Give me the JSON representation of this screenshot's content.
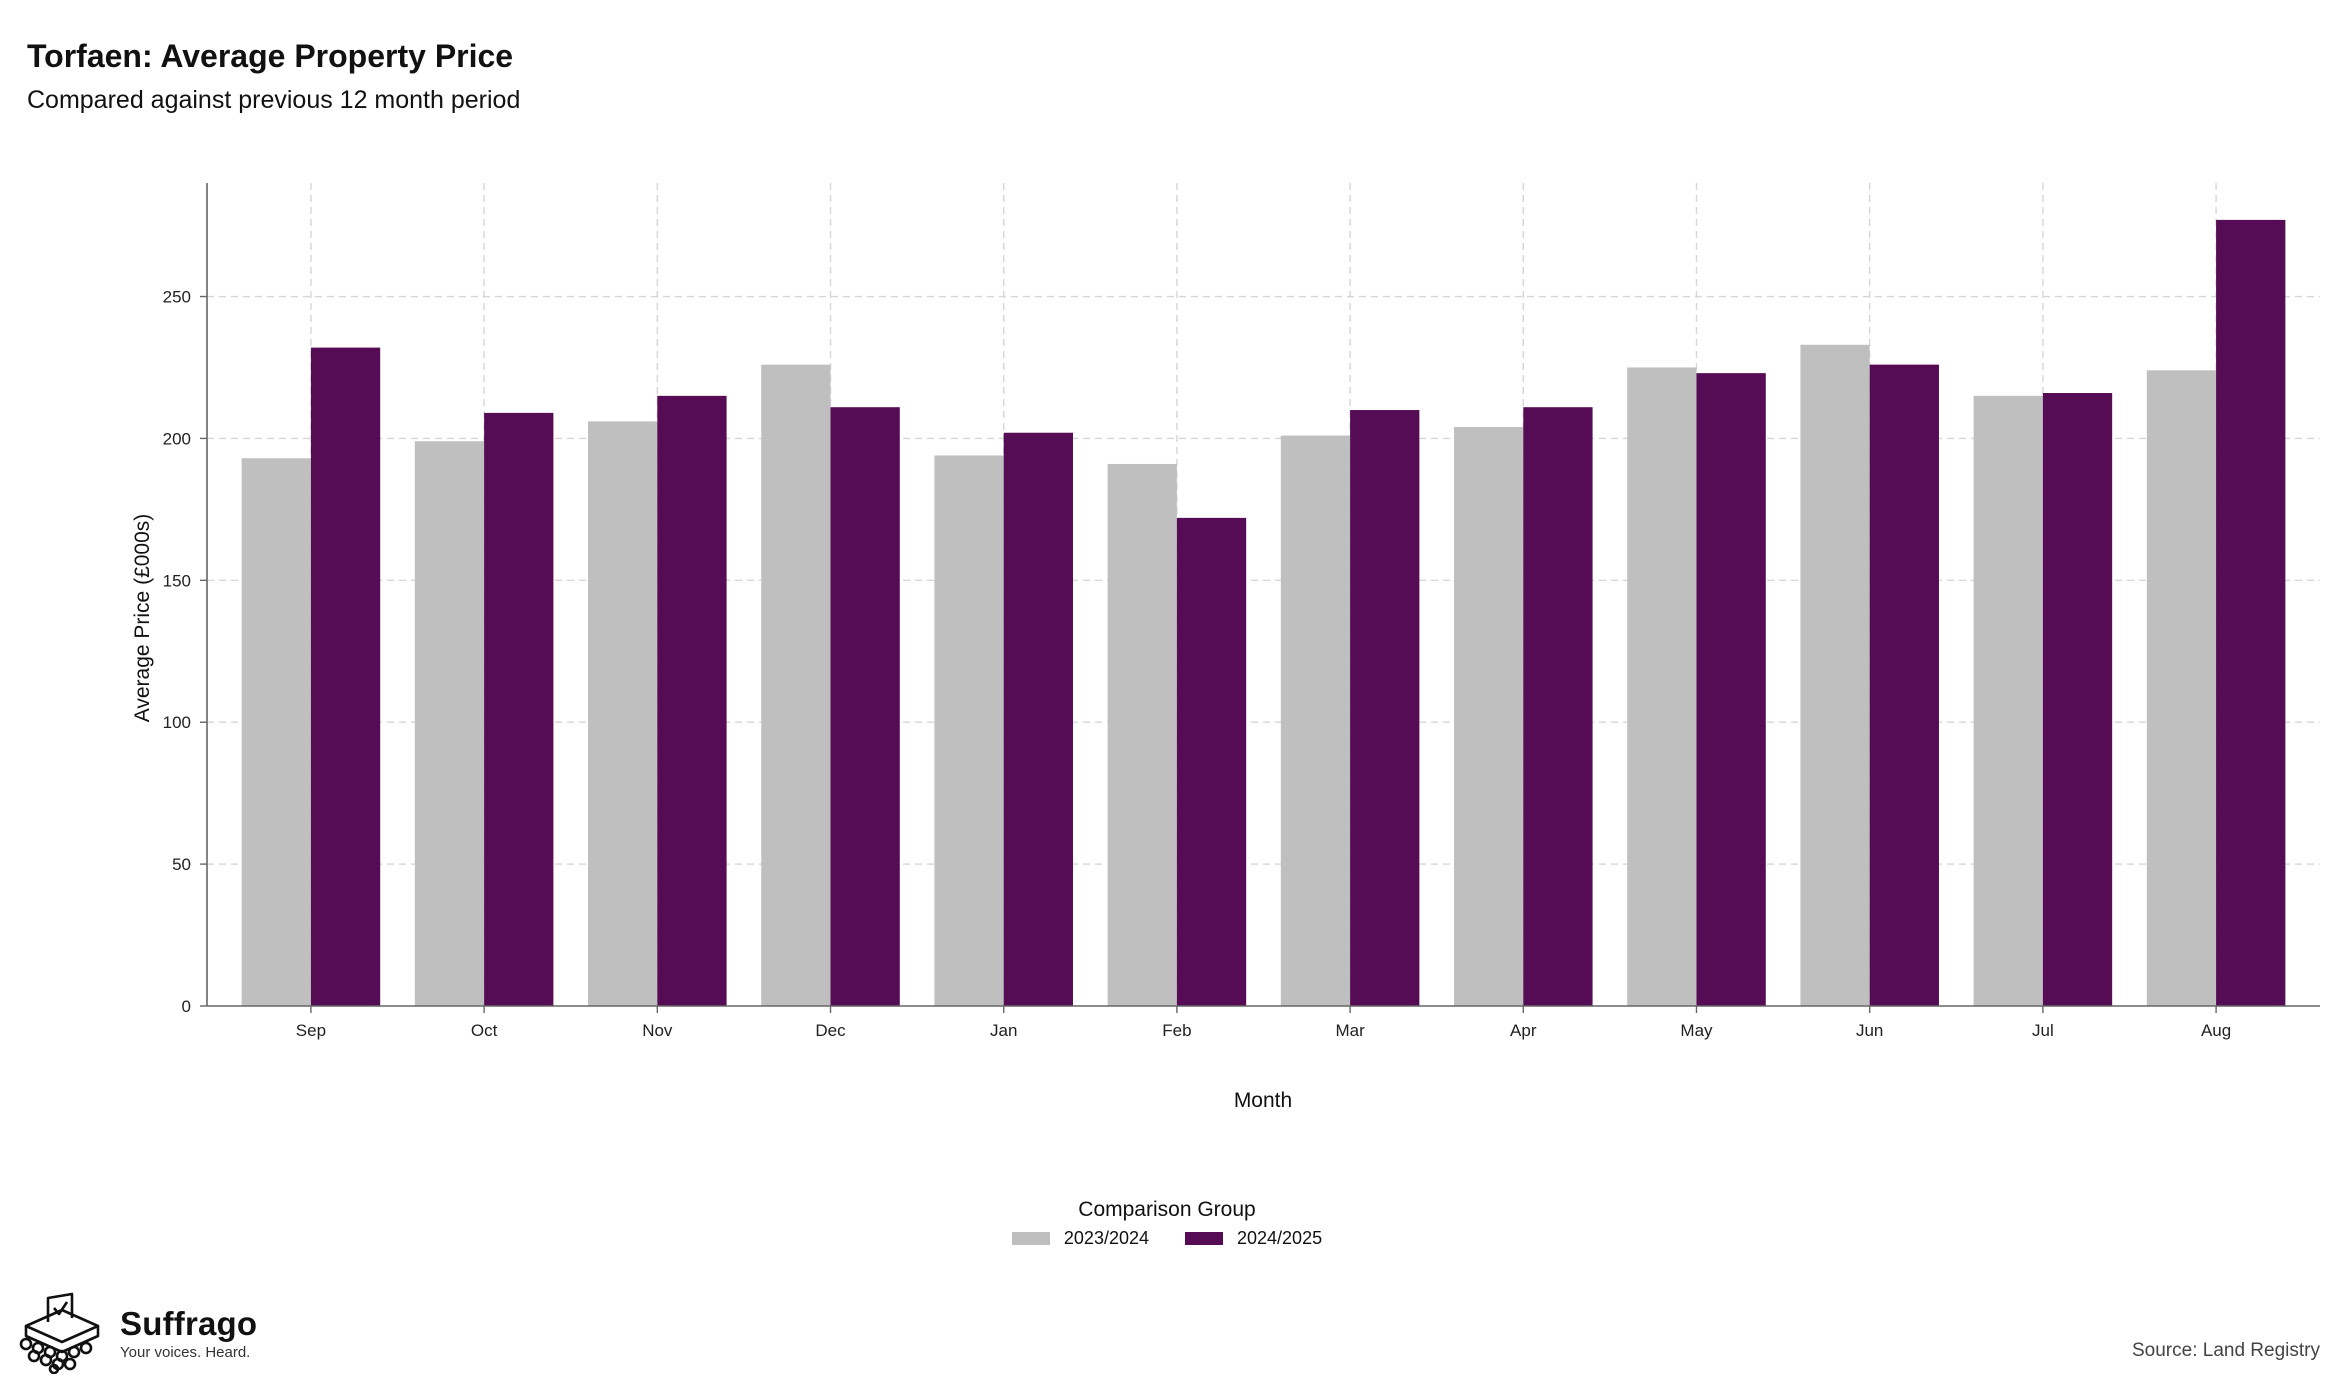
{
  "header": {
    "title": "Torfaen: Average Property Price",
    "subtitle": "Compared against previous 12 month period"
  },
  "chart_data": {
    "type": "bar",
    "title": "Torfaen: Average Property Price",
    "subtitle": "Compared against previous 12 month period",
    "xlabel": "Month",
    "ylabel": "Average Price (£000s)",
    "categories": [
      "Sep",
      "Oct",
      "Nov",
      "Dec",
      "Jan",
      "Feb",
      "Mar",
      "Apr",
      "May",
      "Jun",
      "Jul",
      "Aug"
    ],
    "series": [
      {
        "name": "2023/2024",
        "color": "#bfbfbf",
        "values": [
          193,
          199,
          206,
          226,
          194,
          191,
          201,
          204,
          225,
          233,
          215,
          224
        ]
      },
      {
        "name": "2024/2025",
        "color": "#560b55",
        "values": [
          232,
          209,
          215,
          211,
          202,
          172,
          210,
          211,
          223,
          226,
          216,
          277
        ]
      }
    ],
    "ylim": [
      0,
      290
    ],
    "yticks": [
      0,
      50,
      100,
      150,
      200,
      250
    ],
    "grid": true,
    "legend_title": "Comparison Group",
    "legend_position": "bottom"
  },
  "footer": {
    "brand_name": "Suffrago",
    "brand_tagline": "Your voices. Heard.",
    "source": "Source: Land Registry"
  }
}
